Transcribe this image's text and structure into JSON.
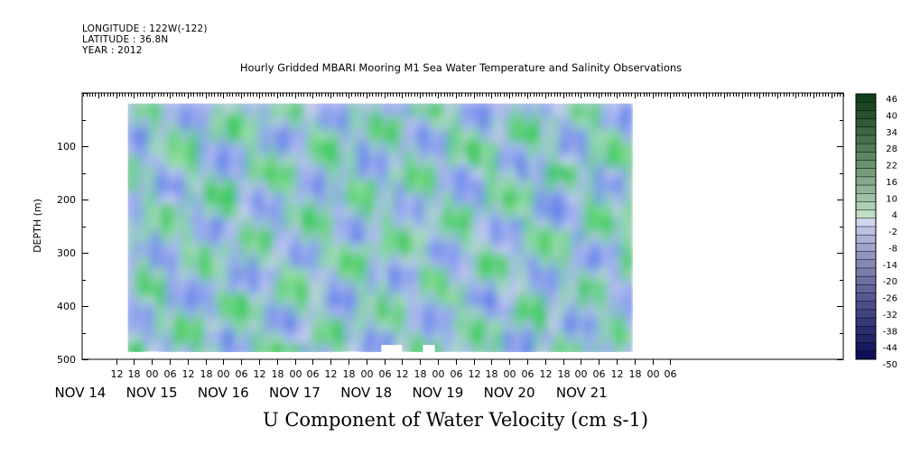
{
  "header": {
    "longitude": "LONGITUDE : 122W(-122)",
    "latitude": "LATITUDE : 36.8N",
    "year": "YEAR : 2012",
    "title": "Hourly Gridded MBARI Mooring M1 Sea Water Temperature and Salinity Observations"
  },
  "chart_data": {
    "type": "heatmap",
    "title": "Hourly Gridded MBARI Mooring M1 Sea Water Temperature and Salinity Observations",
    "xlabel": "U Component of Water Velocity (cm s-1)",
    "ylabel": "DEPTH (m)",
    "ylim": [
      500,
      0
    ],
    "yticks": [
      100,
      200,
      300,
      400,
      500
    ],
    "x_hour_ticks": [
      "12",
      "18",
      "00",
      "06",
      "12",
      "18",
      "00",
      "06",
      "12",
      "18",
      "00",
      "06",
      "12",
      "18",
      "00",
      "06",
      "12",
      "18",
      "00",
      "06",
      "12",
      "18",
      "00",
      "06",
      "12",
      "18",
      "00",
      "06",
      "12",
      "18",
      "00",
      "06"
    ],
    "x_date_labels": [
      "NOV 14",
      "NOV 15",
      "NOV 16",
      "NOV 17",
      "NOV 18",
      "NOV 19",
      "NOV 20",
      "NOV 21"
    ],
    "colorbar": {
      "labels": [
        "46",
        "40",
        "34",
        "28",
        "22",
        "16",
        "10",
        "4",
        "-2",
        "-8",
        "-14",
        "-20",
        "-26",
        "-32",
        "-38",
        "-44",
        "-50"
      ],
      "min": -50,
      "max": 46,
      "step": 3
    },
    "data_depth_range": [
      20,
      485
    ],
    "data_time_range_hours_from_nov14_00": [
      16,
      185
    ],
    "missing_bottom_segments_hours": [
      [
        101,
        108
      ],
      [
        115,
        119
      ]
    ],
    "colors": {
      "positive": "#22c84a",
      "negative": "#3a64e8",
      "zero": "#c9cef0",
      "colorbar_top": "#0b3a14",
      "colorbar_bottom": "#0a0a55"
    }
  }
}
